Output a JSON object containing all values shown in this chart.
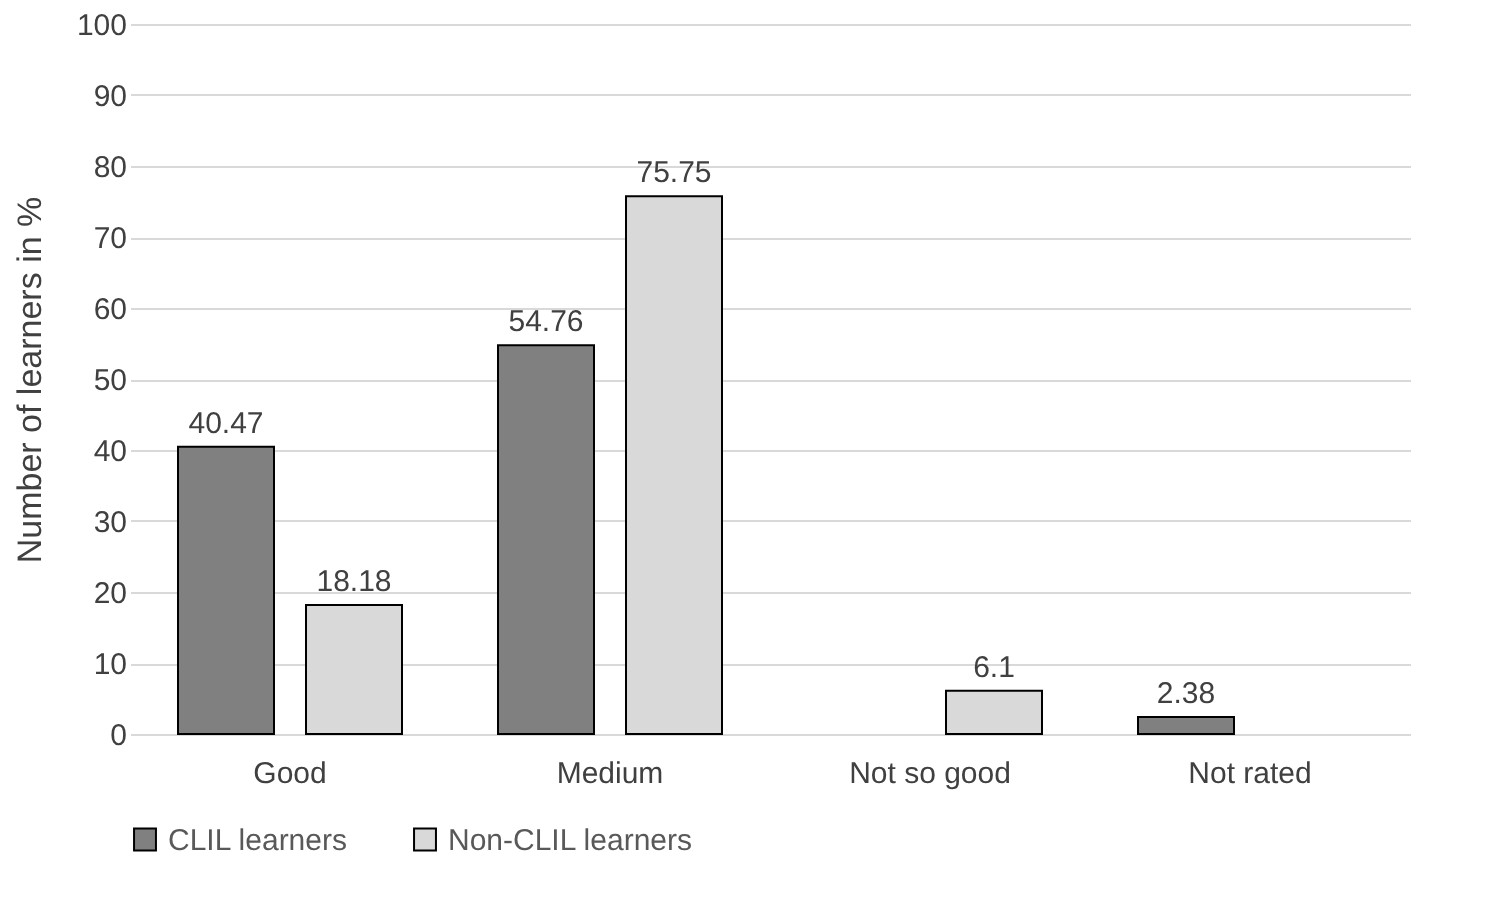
{
  "chart_data": {
    "type": "bar",
    "ylabel": "Number of learners in %",
    "categories": [
      "Good",
      "Medium",
      "Not so good",
      "Not rated"
    ],
    "series": [
      {
        "name": "CLIL learners",
        "color": "#808080",
        "values": [
          40.47,
          54.76,
          null,
          2.38
        ]
      },
      {
        "name": "Non-CLIL learners",
        "color": "#d9d9d9",
        "values": [
          18.18,
          75.75,
          6.1,
          null
        ]
      }
    ],
    "ylim": [
      0,
      100
    ],
    "yticks": [
      0,
      10,
      20,
      30,
      40,
      50,
      60,
      70,
      80,
      90,
      100
    ],
    "grid": "y",
    "legend": "bottom",
    "data_labels": true
  }
}
